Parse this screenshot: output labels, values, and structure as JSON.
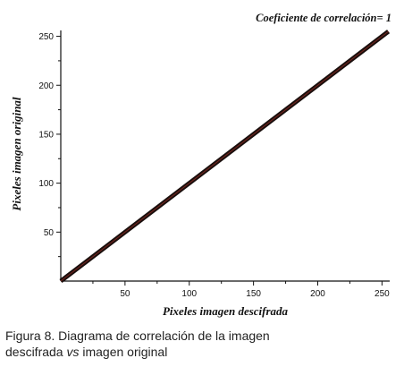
{
  "chart_data": {
    "type": "line",
    "annotation": "Coeficiente de correlación= 1",
    "xlabel": "Pixeles imagen descifrada",
    "ylabel": "Pixeles imagen original",
    "xlim": [
      0,
      256
    ],
    "ylim": [
      0,
      256
    ],
    "x_ticks": [
      50,
      100,
      150,
      200,
      250
    ],
    "y_ticks": [
      50,
      100,
      150,
      200,
      250
    ],
    "series": [
      {
        "x": [
          0,
          255
        ],
        "y": [
          0,
          255
        ],
        "color": "#1a0f0d",
        "highlight_color": "#8a2a22"
      }
    ],
    "grid": false,
    "legend": "none"
  },
  "caption": {
    "line1": "Figura 8. Diagrama de correlación de la imagen",
    "line2_prefix": "descifrada ",
    "line2_vs": "vs",
    "line2_suffix": " imagen original"
  }
}
